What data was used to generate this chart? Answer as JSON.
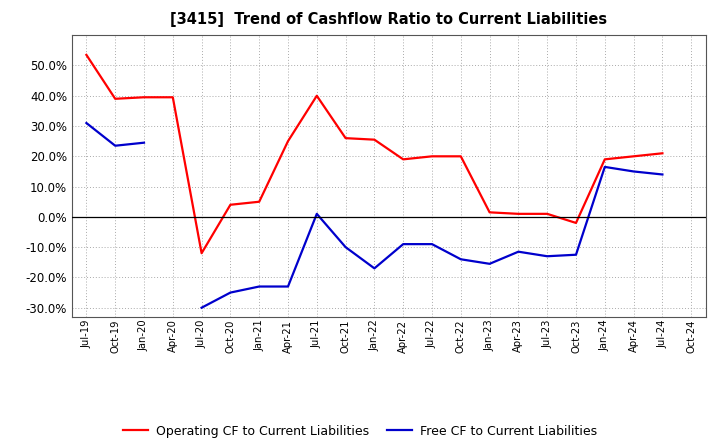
{
  "title": "[3415]  Trend of Cashflow Ratio to Current Liabilities",
  "x_labels": [
    "Jul-19",
    "Oct-19",
    "Jan-20",
    "Apr-20",
    "Jul-20",
    "Oct-20",
    "Jan-21",
    "Apr-21",
    "Jul-21",
    "Oct-21",
    "Jan-22",
    "Apr-22",
    "Jul-22",
    "Oct-22",
    "Jan-23",
    "Apr-23",
    "Jul-23",
    "Oct-23",
    "Jan-24",
    "Apr-24",
    "Jul-24",
    "Oct-24"
  ],
  "operating_cf": [
    0.535,
    0.39,
    0.395,
    0.395,
    -0.12,
    0.04,
    0.05,
    0.25,
    0.4,
    0.26,
    0.255,
    0.19,
    0.2,
    0.2,
    0.015,
    0.01,
    0.01,
    -0.02,
    0.19,
    0.2,
    0.21,
    null
  ],
  "free_cf": [
    0.31,
    0.235,
    0.245,
    null,
    -0.3,
    -0.25,
    -0.23,
    -0.23,
    0.01,
    -0.1,
    -0.17,
    -0.09,
    -0.09,
    -0.14,
    -0.155,
    -0.115,
    -0.13,
    -0.125,
    0.165,
    0.15,
    0.14,
    null
  ],
  "operating_color": "#FF0000",
  "free_color": "#0000CC",
  "ylim": [
    -0.33,
    0.6
  ],
  "yticks": [
    -0.3,
    -0.2,
    -0.1,
    0.0,
    0.1,
    0.2,
    0.3,
    0.4,
    0.5
  ],
  "legend_operating": "Operating CF to Current Liabilities",
  "legend_free": "Free CF to Current Liabilities",
  "background_color": "#FFFFFF",
  "plot_bg_color": "#FFFFFF",
  "grid_color": "#AAAAAA"
}
